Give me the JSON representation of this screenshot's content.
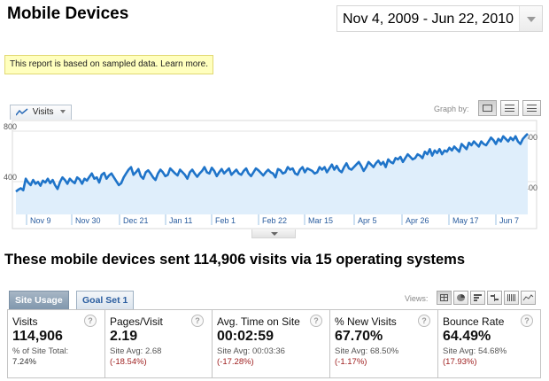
{
  "header": {
    "title": "Mobile Devices",
    "date_range": "Nov 4, 2009 - Jun 22, 2010"
  },
  "notice": "This report is based on sampled data. Learn more.",
  "graph": {
    "metric_tab": "Visits",
    "graph_by_label": "Graph by:",
    "graph_by_buttons": [
      "day-icon",
      "week-icon",
      "month-icon"
    ]
  },
  "chart_data": {
    "type": "area",
    "title": "",
    "xlabel": "",
    "ylabel": "",
    "x_tick_labels": [
      "Nov 9",
      "Nov 30",
      "Dec 21",
      "Jan 11",
      "Feb 1",
      "Feb 22",
      "Mar 15",
      "Apr 5",
      "Apr 26",
      "May 17",
      "Jun 7"
    ],
    "y_tick_labels": [
      "800",
      "400"
    ],
    "ylim": [
      0,
      800
    ],
    "grid": true,
    "series": [
      {
        "name": "Visits",
        "color": "#1f74c9",
        "values": [
          330,
          345,
          355,
          340,
          430,
          400,
          380,
          420,
          390,
          405,
          375,
          415,
          400,
          430,
          395,
          420,
          380,
          350,
          405,
          440,
          420,
          390,
          430,
          410,
          395,
          440,
          425,
          390,
          430,
          415,
          445,
          470,
          430,
          440,
          400,
          460,
          475,
          430,
          455,
          470,
          440,
          410,
          380,
          395,
          440,
          470,
          500,
          520,
          460,
          480,
          505,
          450,
          430,
          480,
          495,
          470,
          440,
          420,
          470,
          500,
          480,
          450,
          460,
          510,
          490,
          470,
          455,
          500,
          480,
          460,
          430,
          480,
          500,
          470,
          445,
          470,
          490,
          520,
          480,
          470,
          515,
          490,
          450,
          480,
          505,
          470,
          490,
          510,
          460,
          480,
          500,
          470,
          460,
          490,
          510,
          470,
          450,
          480,
          510,
          495,
          475,
          455,
          480,
          500,
          480,
          470,
          440,
          505,
          495,
          470,
          480,
          520,
          500,
          510,
          470,
          460,
          500,
          520,
          480,
          510,
          500,
          490,
          470,
          480,
          520,
          500,
          520,
          480,
          510,
          540,
          500,
          530,
          495,
          480,
          520,
          550,
          510,
          500,
          520,
          540,
          560,
          530,
          490,
          520,
          560,
          540,
          520,
          550,
          570,
          540,
          560,
          520,
          580,
          560,
          550,
          590,
          580,
          600,
          560,
          590,
          620,
          600,
          580,
          590,
          620,
          610,
          590,
          640,
          620,
          660,
          610,
          650,
          630,
          660,
          620,
          650,
          640,
          670,
          650,
          680,
          660,
          640,
          700,
          680,
          660,
          710,
          690,
          720,
          700,
          680,
          720,
          700,
          690,
          720,
          750,
          730,
          700,
          740,
          720,
          760,
          740,
          720,
          750,
          730,
          760,
          720,
          700,
          740,
          760,
          780
        ]
      }
    ]
  },
  "summary": "These mobile devices sent 114,906 visits via 15 operating systems",
  "tabs": {
    "site_usage": "Site Usage",
    "goal_set": "Goal Set 1"
  },
  "views_label": "Views:",
  "metrics": [
    {
      "label": "Visits",
      "value": "114,906",
      "sub": "% of Site Total:",
      "sub2": "7.24%",
      "delta": ""
    },
    {
      "label": "Pages/Visit",
      "value": "2.19",
      "sub": "Site Avg: 2.68",
      "sub2": "",
      "delta": "(-18.54%)"
    },
    {
      "label": "Avg. Time on Site",
      "value": "00:02:59",
      "sub": "Site Avg: 00:03:36",
      "sub2": "",
      "delta": "(-17.28%)"
    },
    {
      "label": "% New Visits",
      "value": "67.70%",
      "sub": "Site Avg: 68.50%",
      "sub2": "",
      "delta": "(-1.17%)"
    },
    {
      "label": "Bounce Rate",
      "value": "64.49%",
      "sub": "Site Avg: 54.68%",
      "sub2": "",
      "delta": "(17.93%)"
    }
  ],
  "help_glyph": "?"
}
